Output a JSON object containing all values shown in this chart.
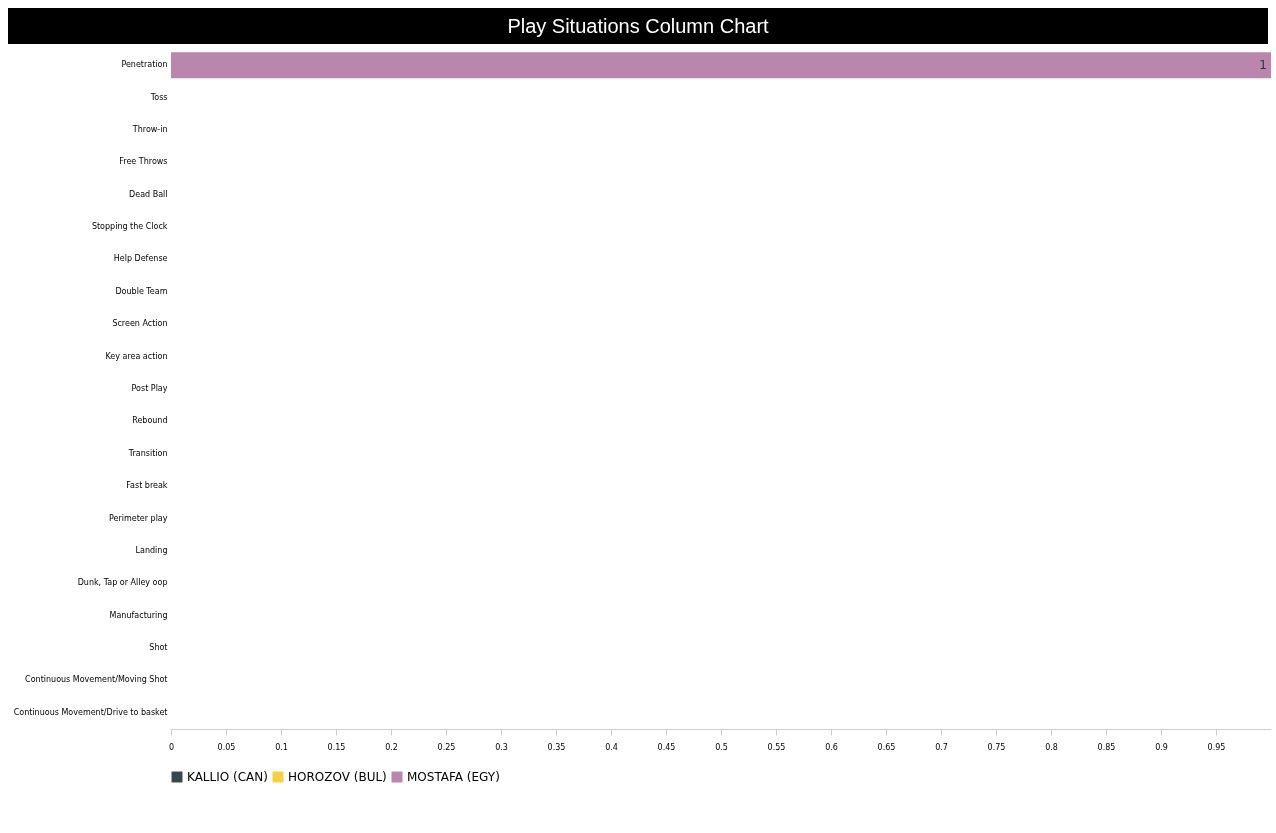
{
  "chart_data": {
    "type": "bar",
    "orientation": "horizontal",
    "stacked": true,
    "title": "Play Situations Column Chart",
    "categories": [
      "Penetration",
      "Toss",
      "Throw-in",
      "Free Throws",
      "Dead Ball",
      "Stopping the Clock",
      "Help Defense",
      "Double Team",
      "Screen Action",
      "Key area action",
      "Post Play",
      "Rebound",
      "Transition",
      "Fast break",
      "Perimeter play",
      "Landing",
      "Dunk, Tap or Alley oop",
      "Manufacturing",
      "Shot",
      "Continuous Movement/Moving Shot",
      "Continuous Movement/Drive to basket"
    ],
    "series": [
      {
        "name": "KALLIO (CAN)",
        "color": "#37474f",
        "values": [
          0,
          0,
          0,
          0,
          0,
          0,
          0,
          0,
          0,
          0,
          0,
          0,
          0,
          0,
          0,
          0,
          0,
          0,
          0,
          0,
          0
        ]
      },
      {
        "name": "HOROZOV (BUL)",
        "color": "#f5d142",
        "values": [
          0,
          0,
          0,
          0,
          0,
          0,
          0,
          0,
          0,
          0,
          0,
          0,
          0,
          0,
          0,
          0,
          0,
          0,
          0,
          0,
          0
        ]
      },
      {
        "name": "MOSTAFA (EGY)",
        "color": "#b987ad",
        "values": [
          1,
          0,
          0,
          0,
          0,
          0,
          0,
          0,
          0,
          0,
          0,
          0,
          0,
          0,
          0,
          0,
          0,
          0,
          0,
          0,
          0
        ],
        "value_labels": [
          "1",
          null,
          null,
          null,
          null,
          null,
          null,
          null,
          null,
          null,
          null,
          null,
          null,
          null,
          null,
          null,
          null,
          null,
          null,
          null,
          null
        ]
      }
    ],
    "xlim": [
      0,
      1
    ],
    "xticks": [
      0,
      0.05,
      0.1,
      0.15,
      0.2,
      0.25,
      0.3,
      0.35,
      0.4,
      0.45,
      0.5,
      0.55,
      0.6,
      0.65,
      0.7,
      0.75,
      0.8,
      0.85,
      0.9,
      0.95
    ],
    "grid": false,
    "legend": "bottom left"
  }
}
